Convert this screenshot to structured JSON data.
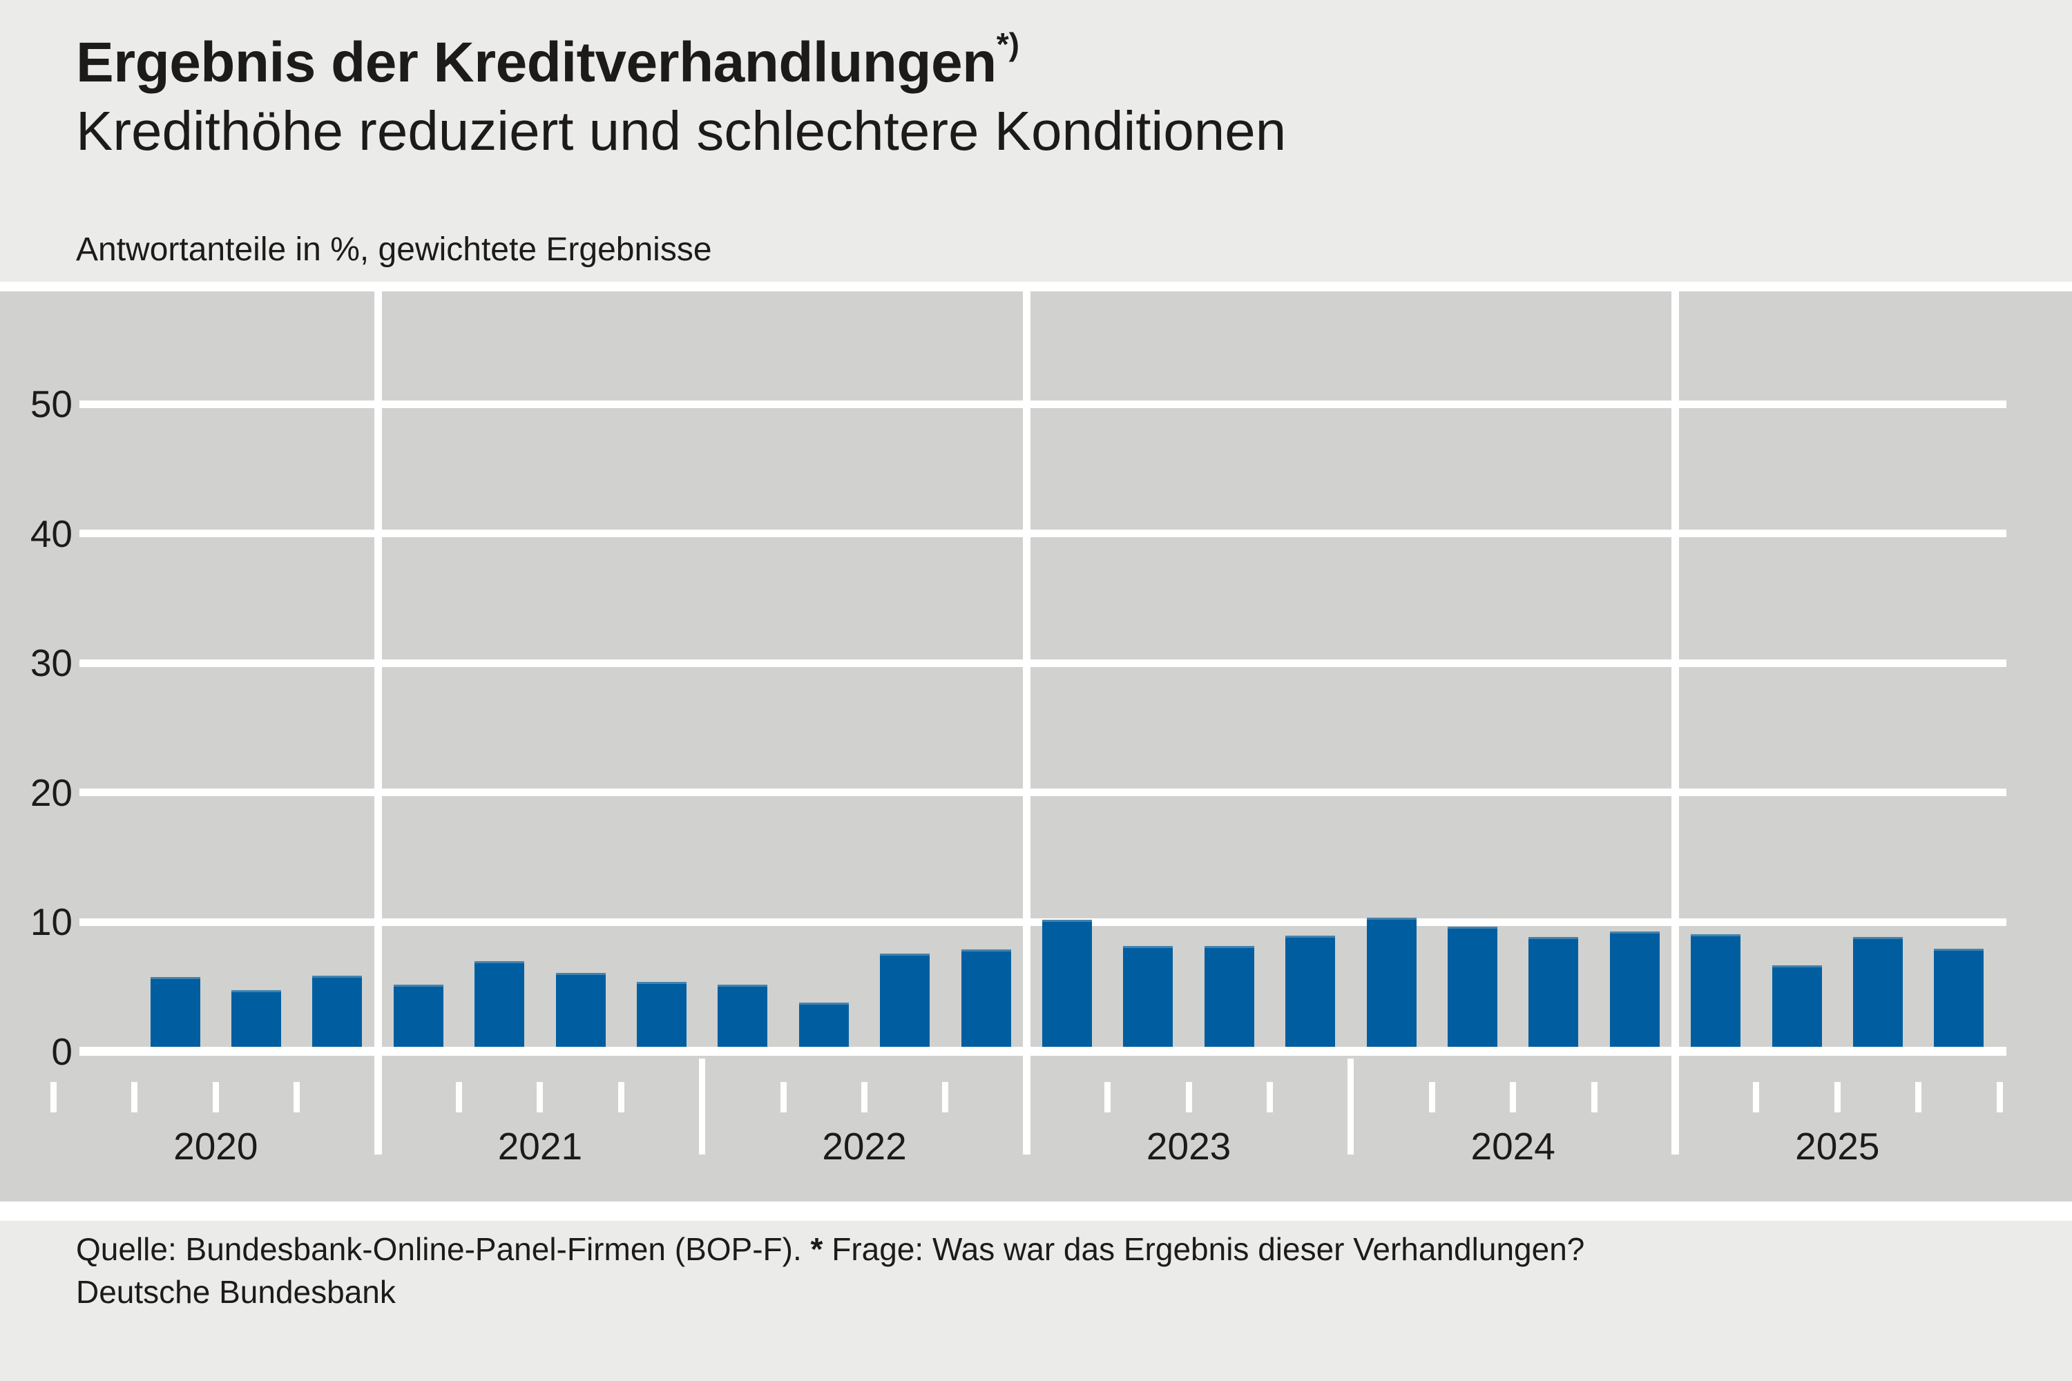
{
  "header": {
    "title": "Ergebnis der Kreditverhandlungen",
    "title_superscript": "*)",
    "subtitle": "Kredithöhe reduziert und schlechtere Konditionen",
    "units_note": "Antwortanteile in %, gewichtete Ergebnisse"
  },
  "footer": {
    "source_prefix": "Quelle: Bundesbank-Online-Panel-Firmen (BOP-F). ",
    "footnote_marker": "*",
    "source_suffix": " Frage: Was war das Ergebnis dieser Verhandlungen?",
    "publisher": "Deutsche Bundesbank"
  },
  "colors": {
    "bar": "#005EA0",
    "bar_top_edge": "#4282AF",
    "plot_background": "#D1D1CF",
    "panel_background": "#EBEBEA",
    "grid": "#FFFFFF",
    "text": "#1D1B19"
  },
  "chart_data": {
    "type": "bar",
    "title": "Ergebnis der Kreditverhandlungen",
    "subtitle": "Kredithöhe reduziert und schlechtere Konditionen",
    "ylabel": "Antwortanteile in %, gewichtete Ergebnisse",
    "unit": "%",
    "ylim": [
      0,
      52
    ],
    "yticks": [
      50,
      40,
      30,
      20,
      10,
      0
    ],
    "grid": "white horizontal gridlines every 10; full-height vertical white gridlines at the 2020/2021, 2022/2023 and 2024/2025 year boundaries; shorter separators below axis at other year boundaries; small quarterly tick marks below the zero line",
    "legend": "none",
    "year_labels": [
      "2020",
      "2021",
      "2022",
      "2023",
      "2024",
      "2025"
    ],
    "bars": [
      {
        "label": "2020 Q2",
        "value": 5.4
      },
      {
        "label": "2020 Q3",
        "value": 4.4
      },
      {
        "label": "2020 Q4",
        "value": 5.5
      },
      {
        "label": "2021 Q1",
        "value": 4.8
      },
      {
        "label": "2021 Q2",
        "value": 6.6
      },
      {
        "label": "2021 Q3",
        "value": 5.7
      },
      {
        "label": "2021 Q4",
        "value": 5.0
      },
      {
        "label": "2022 Q1",
        "value": 4.8
      },
      {
        "label": "2022 Q2",
        "value": 3.4
      },
      {
        "label": "2022 Q3",
        "value": 7.2
      },
      {
        "label": "2022 Q4",
        "value": 7.5
      },
      {
        "label": "2023 Q1",
        "value": 9.8
      },
      {
        "label": "2023 Q2",
        "value": 7.8
      },
      {
        "label": "2023 Q3",
        "value": 7.8
      },
      {
        "label": "2023 Q4",
        "value": 8.6
      },
      {
        "label": "2024 Q1",
        "value": 10.0
      },
      {
        "label": "2024 Q2",
        "value": 9.3
      },
      {
        "label": "2024 Q3",
        "value": 8.5
      },
      {
        "label": "2024 Q4",
        "value": 8.9
      },
      {
        "label": "2025 Q1",
        "value": 8.7
      },
      {
        "label": "2025 Q2",
        "value": 6.3
      },
      {
        "label": "2025 Q3",
        "value": 8.5
      },
      {
        "label": "2025 Q4",
        "value": 7.6
      }
    ]
  }
}
